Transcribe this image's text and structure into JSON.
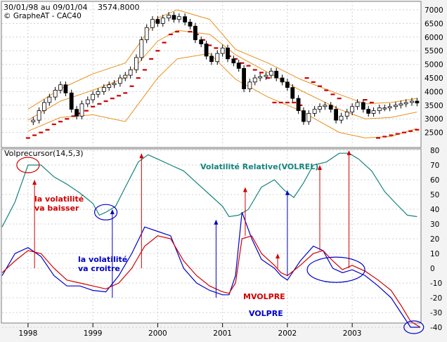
{
  "header": {
    "range": "30/01/98 au 09/01/04",
    "last": "3574,8000",
    "credit": "© GrapheAT - CAC40"
  },
  "chart_data": [
    {
      "type": "candlestick",
      "title": "CAC40",
      "ylim": [
        2000,
        7000
      ],
      "yticks": [
        2500,
        3000,
        3500,
        4000,
        4500,
        5000,
        5500,
        6000,
        6500,
        7000
      ],
      "grid": true,
      "series": [
        {
          "name": "Price (weekly candles, approx.)",
          "x": [
            1998.08,
            1998.17,
            1998.25,
            1998.33,
            1998.42,
            1998.5,
            1998.58,
            1998.67,
            1998.75,
            1998.83,
            1998.92,
            1999.0,
            1999.08,
            1999.17,
            1999.25,
            1999.33,
            1999.42,
            1999.5,
            1999.58,
            1999.67,
            1999.75,
            1999.83,
            1999.92,
            2000.0,
            2000.08,
            2000.17,
            2000.25,
            2000.33,
            2000.42,
            2000.5,
            2000.58,
            2000.67,
            2000.75,
            2000.83,
            2000.92,
            2001.0,
            2001.08,
            2001.17,
            2001.25,
            2001.33,
            2001.42,
            2001.5,
            2001.58,
            2001.67,
            2001.75,
            2001.83,
            2001.92,
            2002.0,
            2002.08,
            2002.17,
            2002.25,
            2002.33,
            2002.42,
            2002.5,
            2002.58,
            2002.67,
            2002.75,
            2002.83,
            2002.92,
            2003.0,
            2003.08,
            2003.17,
            2003.25,
            2003.33,
            2003.42,
            2003.5,
            2003.58,
            2003.67,
            2003.75,
            2003.83,
            2003.92,
            2004.0
          ],
          "y": [
            2950,
            3300,
            3600,
            3800,
            4050,
            4250,
            3950,
            3350,
            3100,
            3550,
            3700,
            3900,
            4000,
            4150,
            4250,
            4300,
            4500,
            4600,
            4800,
            5250,
            5900,
            6350,
            6650,
            6500,
            6700,
            6800,
            6650,
            6750,
            6550,
            6400,
            5900,
            5750,
            5300,
            5100,
            5400,
            5600,
            5200,
            5050,
            4850,
            4100,
            4350,
            4500,
            4550,
            4600,
            4750,
            4500,
            4350,
            4150,
            3750,
            3300,
            2900,
            3200,
            3350,
            3450,
            3500,
            3350,
            2950,
            3100,
            3250,
            3450,
            3600,
            3350,
            3200,
            3300,
            3400,
            3400,
            3450,
            3500,
            3550,
            3600,
            3650,
            3580
          ]
        },
        {
          "name": "Upper band",
          "x": [
            1998.0,
            1998.5,
            1999.0,
            1999.5,
            2000.0,
            2000.3,
            2000.8,
            2001.2,
            2001.7,
            2002.2,
            2002.8,
            2003.2,
            2003.6,
            2004.0
          ],
          "y": [
            3350,
            4100,
            4650,
            5050,
            6700,
            7000,
            6650,
            5550,
            5050,
            4450,
            3900,
            3550,
            3600,
            3750
          ]
        },
        {
          "name": "Mid band",
          "x": [
            1998.0,
            1998.5,
            1999.0,
            1999.5,
            2000.0,
            2000.3,
            2000.8,
            2001.2,
            2001.7,
            2002.2,
            2002.8,
            2003.2,
            2003.6,
            2004.0
          ],
          "y": [
            2950,
            3650,
            4050,
            4500,
            5850,
            6250,
            6100,
            5350,
            4700,
            4050,
            3350,
            3000,
            3050,
            3250
          ]
        },
        {
          "name": "Lower band",
          "x": [
            1998.0,
            1998.5,
            1999.0,
            1999.5,
            2000.0,
            2000.3,
            2000.8,
            2001.2,
            2001.7,
            2002.2,
            2002.8,
            2003.2,
            2003.6,
            2004.0
          ],
          "y": [
            2550,
            3050,
            3150,
            2900,
            4500,
            5200,
            5400,
            4450,
            3800,
            3300,
            2500,
            2300,
            2350,
            2650
          ]
        },
        {
          "name": "Stop dots",
          "x": [
            1998.0,
            1998.1,
            1998.2,
            1998.3,
            1998.4,
            1998.5,
            1998.6,
            1998.7,
            1998.8,
            1998.9,
            1999.0,
            1999.1,
            1999.2,
            1999.3,
            1999.4,
            1999.5,
            1999.6,
            1999.7,
            1999.8,
            1999.9,
            2000.0,
            2000.1,
            2000.2,
            2000.3,
            2000.5,
            2000.6,
            2000.7,
            2000.8,
            2000.9,
            2001.0,
            2001.1,
            2001.2,
            2001.3,
            2001.4,
            2001.5,
            2001.6,
            2001.7,
            2001.8,
            2001.9,
            2002.0,
            2002.1,
            2002.2,
            2002.3,
            2002.4,
            2002.5,
            2002.6,
            2002.7,
            2002.8,
            2003.2,
            2003.3,
            2003.4,
            2003.5,
            2003.6,
            2003.7,
            2003.8,
            2003.9,
            2004.0
          ],
          "y": [
            2300,
            2400,
            2500,
            2600,
            2800,
            2900,
            3000,
            3100,
            3200,
            3300,
            3450,
            3550,
            3650,
            3750,
            3850,
            3950,
            4200,
            4500,
            4800,
            5200,
            5500,
            5800,
            6100,
            6200,
            6200,
            6100,
            5900,
            5700,
            5600,
            5500,
            5300,
            5200,
            5050,
            4950,
            4800,
            4700,
            4500,
            3600,
            3600,
            3600,
            3600,
            3500,
            4500,
            4350,
            4200,
            4050,
            3900,
            3750,
            3700,
            3600,
            2300,
            2350,
            2400,
            2450,
            2500,
            2550,
            2600
          ]
        }
      ]
    },
    {
      "type": "line",
      "title": "Volprecursor(14,5,3)",
      "ylim": [
        -40,
        80
      ],
      "yticks": [
        80,
        70,
        60,
        50,
        40,
        30,
        20,
        10,
        0,
        -10,
        -20,
        -30,
        -40
      ],
      "xticks": [
        "1998",
        "1999",
        "2000",
        "2001",
        "2002",
        "2003"
      ],
      "xtick_values": [
        1998,
        1999,
        2000,
        2001,
        2002,
        2003
      ],
      "xlim": [
        1997.6,
        2004.05
      ],
      "grid": true,
      "series": [
        {
          "name": "Volatilité Relative(VOLREL)",
          "color": "#16847e",
          "x": [
            1997.6,
            1997.8,
            1998.0,
            1998.2,
            1998.4,
            1998.6,
            1998.8,
            1999.0,
            1999.1,
            1999.2,
            1999.35,
            1999.5,
            1999.7,
            1999.85,
            2000.0,
            2000.2,
            2000.4,
            2000.6,
            2000.8,
            2001.0,
            2001.1,
            2001.25,
            2001.4,
            2001.6,
            2001.8,
            2001.95,
            2002.1,
            2002.25,
            2002.4,
            2002.6,
            2002.8,
            2002.95,
            2003.1,
            2003.3,
            2003.5,
            2003.65,
            2003.85,
            2004.0
          ],
          "y": [
            28,
            45,
            70,
            70,
            62,
            57,
            51,
            44,
            36,
            38,
            42,
            55,
            72,
            77,
            74,
            70,
            66,
            58,
            50,
            42,
            35,
            36,
            40,
            55,
            60,
            53,
            48,
            58,
            70,
            72,
            78,
            78,
            74,
            66,
            52,
            45,
            36,
            35
          ]
        },
        {
          "name": "VOLPRE",
          "color": "#0000c8",
          "x": [
            1997.6,
            1997.8,
            1998.0,
            1998.2,
            1998.4,
            1998.6,
            1998.8,
            1999.0,
            1999.2,
            1999.4,
            1999.6,
            1999.8,
            2000.0,
            2000.2,
            2000.4,
            2000.6,
            2000.8,
            2001.0,
            2001.1,
            2001.2,
            2001.3,
            2001.45,
            2001.6,
            2001.8,
            2001.9,
            2002.0,
            2002.2,
            2002.4,
            2002.55,
            2002.7,
            2002.85,
            2003.0,
            2003.2,
            2003.4,
            2003.6,
            2003.75,
            2003.9,
            2004.05
          ],
          "y": [
            -5,
            10,
            14,
            8,
            -5,
            -12,
            -12,
            -15,
            -16,
            -5,
            10,
            28,
            25,
            22,
            0,
            -10,
            -15,
            -18,
            -18,
            -5,
            38,
            20,
            6,
            0,
            -5,
            -8,
            5,
            15,
            12,
            0,
            -3,
            -1,
            -5,
            -12,
            -20,
            -30,
            -40,
            -40
          ]
        },
        {
          "name": "MVOLPRE",
          "color": "#d00000",
          "x": [
            1997.6,
            1997.8,
            1998.0,
            1998.2,
            1998.4,
            1998.6,
            1998.8,
            1999.0,
            1999.2,
            1999.4,
            1999.6,
            1999.8,
            2000.0,
            2000.2,
            2000.4,
            2000.6,
            2000.8,
            2001.0,
            2001.1,
            2001.2,
            2001.3,
            2001.45,
            2001.6,
            2001.8,
            2001.9,
            2002.0,
            2002.2,
            2002.4,
            2002.55,
            2002.7,
            2002.85,
            2003.0,
            2003.2,
            2003.4,
            2003.6,
            2003.75,
            2003.9,
            2004.05
          ],
          "y": [
            -3,
            5,
            12,
            10,
            0,
            -8,
            -10,
            -12,
            -14,
            -10,
            0,
            15,
            22,
            20,
            5,
            -5,
            -12,
            -16,
            -17,
            -10,
            20,
            22,
            10,
            2,
            -3,
            -5,
            2,
            10,
            12,
            5,
            -1,
            2,
            -2,
            -8,
            -15,
            -25,
            -36,
            -40
          ]
        }
      ],
      "annotations": [
        {
          "text": "la volatilité",
          "color": "#d00000"
        },
        {
          "text": "va baisser",
          "color": "#d00000"
        },
        {
          "text": "la volatilité",
          "color": "#0000c8"
        },
        {
          "text": "va croitre",
          "color": "#0000c8"
        },
        {
          "text": "Volatilité Relative(VOLREL)",
          "color": "#16847e"
        },
        {
          "text": "MVOLPRE",
          "color": "#d00000"
        },
        {
          "text": "VOLPRE",
          "color": "#0000c8"
        }
      ],
      "arrows": [
        {
          "color": "#d00000",
          "x": 1998.1,
          "from": 0,
          "to": 60
        },
        {
          "color": "#0000c8",
          "x": 1999.3,
          "from": -20,
          "to": 40
        },
        {
          "color": "#d00000",
          "x": 1999.75,
          "from": 0,
          "to": 78
        },
        {
          "color": "#0000c8",
          "x": 2000.9,
          "from": -20,
          "to": 33
        },
        {
          "color": "#d00000",
          "x": 2001.35,
          "from": 22,
          "to": 55
        },
        {
          "color": "#0000c8",
          "x": 2002.0,
          "from": -5,
          "to": 53
        },
        {
          "color": "#d00000",
          "x": 2002.5,
          "from": 12,
          "to": 70
        },
        {
          "color": "#d00000",
          "x": 2002.95,
          "from": 0,
          "to": 80
        },
        {
          "color": "#d00000",
          "x": 2001.85,
          "from": 0,
          "to": 10
        }
      ],
      "circles": [
        {
          "x": 1998.0,
          "y": 70
        },
        {
          "x": 1999.2,
          "y": 38
        },
        {
          "x": 2002.75,
          "y": -1
        },
        {
          "x": 2003.95,
          "y": -40
        }
      ]
    }
  ]
}
